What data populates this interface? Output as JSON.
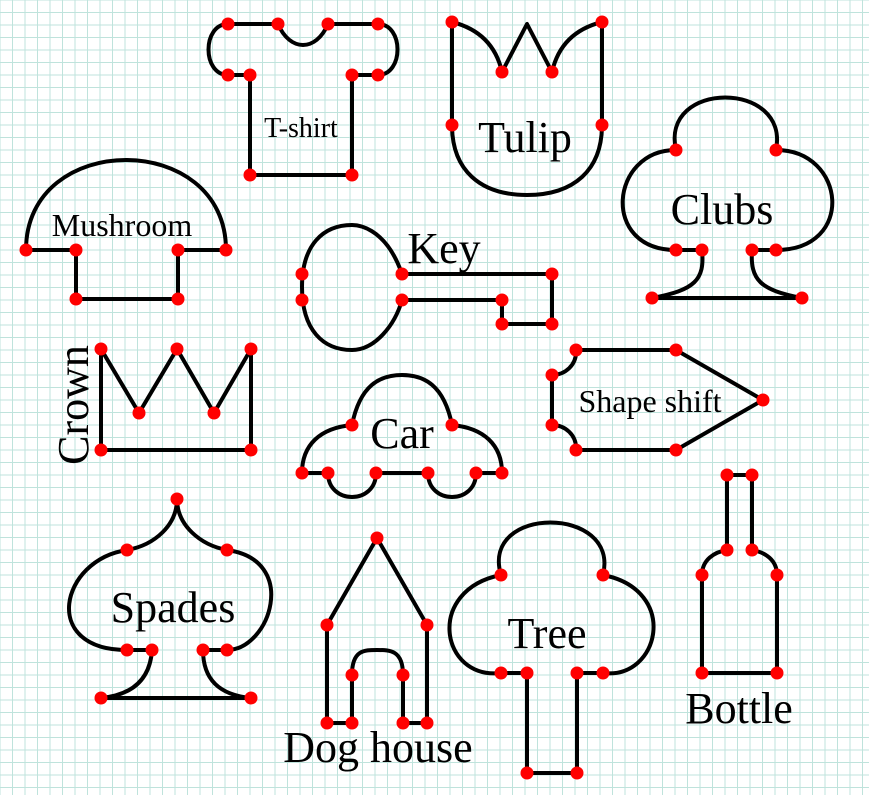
{
  "colors": {
    "background": "#ffffff",
    "grid": "#bfe3dc",
    "stroke": "#000000",
    "dot": "#ff0000"
  },
  "shapes": [
    {
      "id": "tshirt",
      "label": "T-shirt"
    },
    {
      "id": "tulip",
      "label": "Tulip"
    },
    {
      "id": "clubs",
      "label": "Clubs"
    },
    {
      "id": "mushroom",
      "label": "Mushroom"
    },
    {
      "id": "key",
      "label": "Key"
    },
    {
      "id": "crown",
      "label": "Crown"
    },
    {
      "id": "car",
      "label": "Car"
    },
    {
      "id": "shape-shift",
      "label": "Shape shift"
    },
    {
      "id": "spades",
      "label": "Spades"
    },
    {
      "id": "dog-house",
      "label": "Dog house"
    },
    {
      "id": "tree",
      "label": "Tree"
    },
    {
      "id": "bottle",
      "label": "Bottle"
    }
  ]
}
